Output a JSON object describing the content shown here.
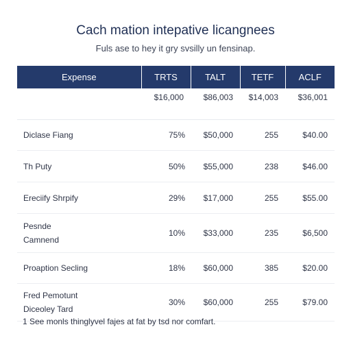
{
  "page": {
    "title": "Cach mation intepative licangnees",
    "subtitle": "Fuls ase to hey it gry svsilly un fensinap."
  },
  "table": {
    "headers": [
      "Expense",
      "TRTS",
      "TALT",
      "TETF",
      "ACLF"
    ],
    "totals": [
      "",
      "$16,000",
      "$86,003",
      "$14,003",
      "$36,001"
    ],
    "rows": [
      {
        "name": [
          "Diclase Fiang"
        ],
        "cells": [
          "75%",
          "$50,000",
          "255",
          "$40.00"
        ]
      },
      {
        "name": [
          "Th Puty"
        ],
        "cells": [
          "50%",
          "$55,000",
          "238",
          "$46.00"
        ]
      },
      {
        "name": [
          "Ereciify Shrpify"
        ],
        "cells": [
          "29%",
          "$17,000",
          "255",
          "$55.00"
        ]
      },
      {
        "name": [
          "Pesnde",
          "Camnend"
        ],
        "cells": [
          "10%",
          "$33,000",
          "235",
          "$6,500"
        ]
      },
      {
        "name": [
          "Proaption Secling"
        ],
        "cells": [
          "18%",
          "$60,000",
          "385",
          "$20.00"
        ]
      },
      {
        "name": [
          "Fred Pemotunt",
          "Diceoley Tard"
        ],
        "cells": [
          "30%",
          "$60,000",
          "255",
          "$79.00"
        ]
      }
    ]
  },
  "footnote": "1  See monls thinglyvel fajes at fat by tsd nor comfart."
}
